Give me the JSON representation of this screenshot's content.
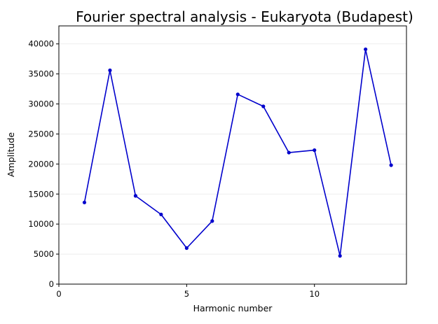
{
  "chart_data": {
    "type": "line",
    "title": "Fourier spectral analysis - Eukaryota (Budapest)",
    "xlabel": "Harmonic number",
    "ylabel": "Amplitude",
    "xlim": [
      0,
      13.6
    ],
    "ylim": [
      0,
      43000
    ],
    "xticks": [
      0,
      5,
      10
    ],
    "yticks": [
      0,
      5000,
      10000,
      15000,
      20000,
      25000,
      30000,
      35000,
      40000
    ],
    "grid": "horizontal",
    "series": [
      {
        "color": "#0000cc",
        "marker": "circle",
        "x": [
          1,
          2,
          3,
          4,
          5,
          6,
          7,
          8,
          9,
          10,
          11,
          12,
          13
        ],
        "y": [
          13600,
          35600,
          14700,
          11600,
          6000,
          10500,
          31600,
          29600,
          21900,
          22300,
          4700,
          39100,
          19800
        ]
      }
    ]
  }
}
